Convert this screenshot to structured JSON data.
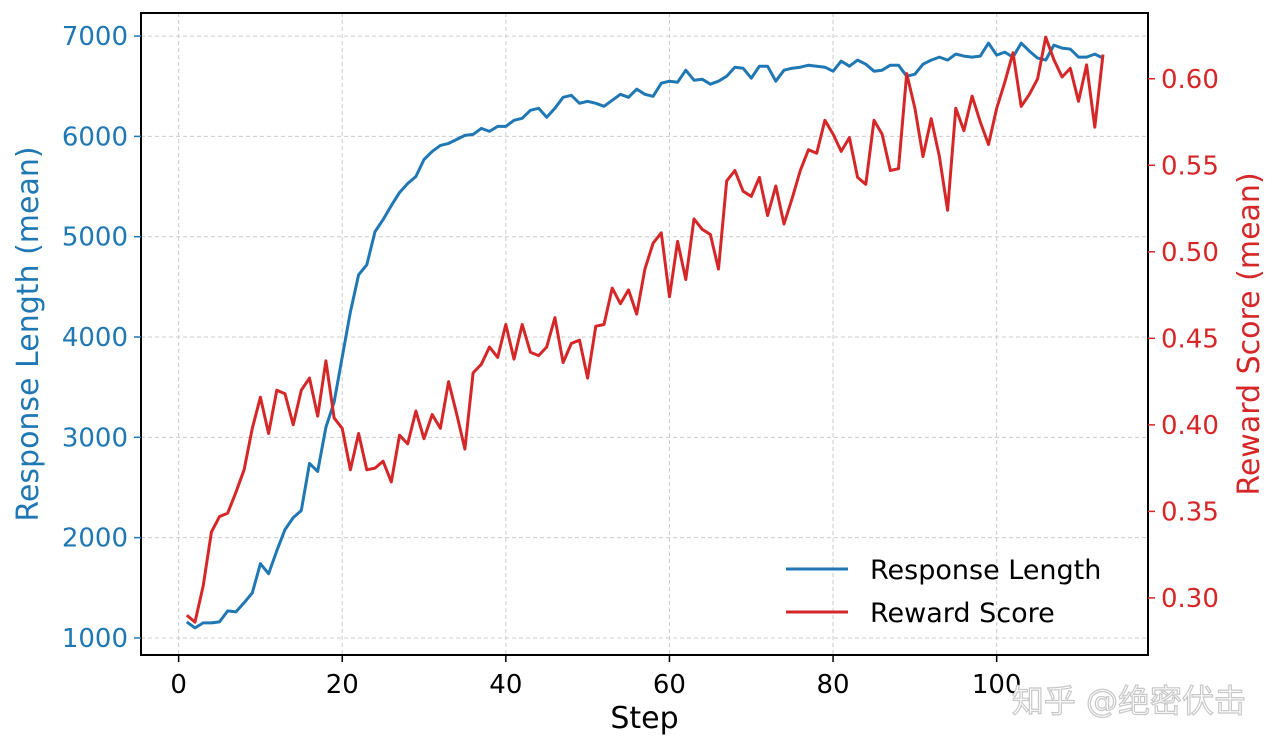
{
  "colors": {
    "length": "#1f77b4",
    "reward": "#d62728",
    "grid": "#cccccc"
  },
  "watermark": "知乎 @绝密伏击",
  "chart_data": {
    "type": "line",
    "xlabel": "Step",
    "ylabel_left": "Response Length (mean)",
    "ylabel_right": "Reward Score (mean)",
    "xlim": [
      -4.6,
      118.5
    ],
    "ylim_left": [
      830,
      7230
    ],
    "ylim_right": [
      0.267,
      0.638
    ],
    "xticks": [
      0,
      20,
      40,
      60,
      80,
      100
    ],
    "yticks_left": [
      1000,
      2000,
      3000,
      4000,
      5000,
      6000,
      7000
    ],
    "yticks_right": [
      0.3,
      0.35,
      0.4,
      0.45,
      0.5,
      0.55,
      0.6
    ],
    "grid": true,
    "legend_position": "lower-right",
    "legend": [
      "Response Length",
      "Reward Score"
    ],
    "x": [
      1,
      2,
      3,
      4,
      5,
      6,
      7,
      8,
      9,
      10,
      11,
      12,
      13,
      14,
      15,
      16,
      17,
      18,
      19,
      20,
      21,
      22,
      23,
      24,
      25,
      26,
      27,
      28,
      29,
      30,
      31,
      32,
      33,
      34,
      35,
      36,
      37,
      38,
      39,
      40,
      41,
      42,
      43,
      44,
      45,
      46,
      47,
      48,
      49,
      50,
      51,
      52,
      53,
      54,
      55,
      56,
      57,
      58,
      59,
      60,
      61,
      62,
      63,
      64,
      65,
      66,
      67,
      68,
      69,
      70,
      71,
      72,
      73,
      74,
      75,
      76,
      77,
      78,
      79,
      80,
      81,
      82,
      83,
      84,
      85,
      86,
      87,
      88,
      89,
      90,
      91,
      92,
      93,
      94,
      95,
      96,
      97,
      98,
      99,
      100,
      101,
      102,
      103,
      104,
      105,
      106,
      107,
      108,
      109,
      110,
      111,
      112,
      113
    ],
    "series": [
      {
        "name": "Response Length",
        "axis": "left",
        "values": [
          1160,
          1100,
          1150,
          1150,
          1160,
          1270,
          1260,
          1350,
          1450,
          1740,
          1640,
          1870,
          2080,
          2200,
          2270,
          2740,
          2660,
          3100,
          3350,
          3800,
          4250,
          4620,
          4720,
          5050,
          5170,
          5310,
          5440,
          5530,
          5600,
          5770,
          5850,
          5910,
          5930,
          5970,
          6010,
          6020,
          6080,
          6050,
          6100,
          6100,
          6160,
          6180,
          6260,
          6280,
          6190,
          6280,
          6390,
          6410,
          6330,
          6350,
          6330,
          6300,
          6360,
          6420,
          6390,
          6470,
          6420,
          6400,
          6530,
          6550,
          6540,
          6660,
          6560,
          6570,
          6520,
          6550,
          6600,
          6690,
          6680,
          6580,
          6700,
          6700,
          6550,
          6660,
          6680,
          6690,
          6710,
          6700,
          6690,
          6650,
          6750,
          6700,
          6760,
          6720,
          6650,
          6660,
          6710,
          6710,
          6600,
          6620,
          6720,
          6760,
          6790,
          6760,
          6820,
          6800,
          6790,
          6800,
          6930,
          6810,
          6840,
          6790,
          6930,
          6850,
          6780,
          6760,
          6910,
          6880,
          6870,
          6790,
          6790,
          6820,
          6780
        ]
      },
      {
        "name": "Reward Score",
        "axis": "right",
        "values": [
          0.29,
          0.286,
          0.307,
          0.338,
          0.347,
          0.349,
          0.361,
          0.374,
          0.398,
          0.416,
          0.395,
          0.42,
          0.418,
          0.4,
          0.42,
          0.427,
          0.405,
          0.437,
          0.404,
          0.398,
          0.374,
          0.395,
          0.374,
          0.375,
          0.379,
          0.367,
          0.394,
          0.389,
          0.408,
          0.392,
          0.406,
          0.398,
          0.425,
          0.406,
          0.386,
          0.43,
          0.435,
          0.445,
          0.439,
          0.458,
          0.438,
          0.458,
          0.442,
          0.44,
          0.445,
          0.462,
          0.436,
          0.447,
          0.449,
          0.427,
          0.457,
          0.458,
          0.479,
          0.47,
          0.478,
          0.464,
          0.49,
          0.505,
          0.511,
          0.474,
          0.506,
          0.484,
          0.519,
          0.513,
          0.51,
          0.49,
          0.541,
          0.547,
          0.535,
          0.532,
          0.543,
          0.521,
          0.538,
          0.516,
          0.531,
          0.547,
          0.559,
          0.557,
          0.576,
          0.568,
          0.558,
          0.566,
          0.543,
          0.539,
          0.576,
          0.568,
          0.547,
          0.548,
          0.603,
          0.583,
          0.555,
          0.577,
          0.555,
          0.524,
          0.583,
          0.57,
          0.59,
          0.575,
          0.562,
          0.583,
          0.598,
          0.615,
          0.584,
          0.591,
          0.6,
          0.624,
          0.611,
          0.601,
          0.606,
          0.587,
          0.608,
          0.572,
          0.614
        ]
      }
    ]
  }
}
